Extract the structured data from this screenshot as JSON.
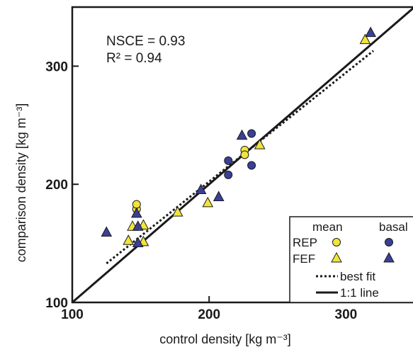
{
  "chart_data": {
    "type": "scatter",
    "xlabel": "control density [kg m⁻³]",
    "ylabel": "comparison density [kg m⁻³]",
    "xlim": [
      100,
      350
    ],
    "ylim": [
      100,
      350
    ],
    "x_ticks": [
      100,
      200,
      300
    ],
    "y_ticks": [
      100,
      200,
      300
    ],
    "grid": false,
    "annotations": {
      "nsce": "NSCE = 0.93",
      "r2": "R² = 0.94"
    },
    "legend": {
      "placement": "bottom-right",
      "col_mean": "mean",
      "col_basal": "basal",
      "row_rep": "REP",
      "row_fef": "FEF",
      "best_fit": "best fit",
      "one_to_one": "1:1 line"
    },
    "colors": {
      "mean_fill": "#f2e43a",
      "basal_fill": "#3b3f98",
      "outline": "#1a1a1a"
    },
    "series": [
      {
        "group": "REP",
        "stat": "mean",
        "marker": "circle",
        "points": [
          [
            147,
            179
          ],
          [
            147,
            183
          ],
          [
            226,
            229
          ],
          [
            226,
            225
          ]
        ]
      },
      {
        "group": "REP",
        "stat": "basal",
        "marker": "circle",
        "points": [
          [
            231,
            243
          ],
          [
            214,
            220
          ],
          [
            214,
            208
          ],
          [
            231,
            216
          ]
        ]
      },
      {
        "group": "FEF",
        "stat": "mean",
        "marker": "triangle",
        "points": [
          [
            141,
            152
          ],
          [
            144,
            164
          ],
          [
            152,
            165
          ],
          [
            152,
            151
          ],
          [
            177,
            176
          ],
          [
            199,
            184
          ],
          [
            237,
            233
          ],
          [
            314,
            322
          ]
        ]
      },
      {
        "group": "FEF",
        "stat": "basal",
        "marker": "triangle",
        "points": [
          [
            125,
            159
          ],
          [
            147,
            175
          ],
          [
            148,
            164
          ],
          [
            148,
            150
          ],
          [
            194,
            195
          ],
          [
            207,
            189
          ],
          [
            224,
            241
          ],
          [
            318,
            328
          ]
        ]
      }
    ],
    "lines": [
      {
        "name": "best fit",
        "style": "dotted",
        "points": [
          [
            125,
            133
          ],
          [
            320,
            313
          ]
        ]
      },
      {
        "name": "1:1 line",
        "style": "solid",
        "points": [
          [
            100,
            100
          ],
          [
            350,
            350
          ]
        ]
      }
    ]
  }
}
